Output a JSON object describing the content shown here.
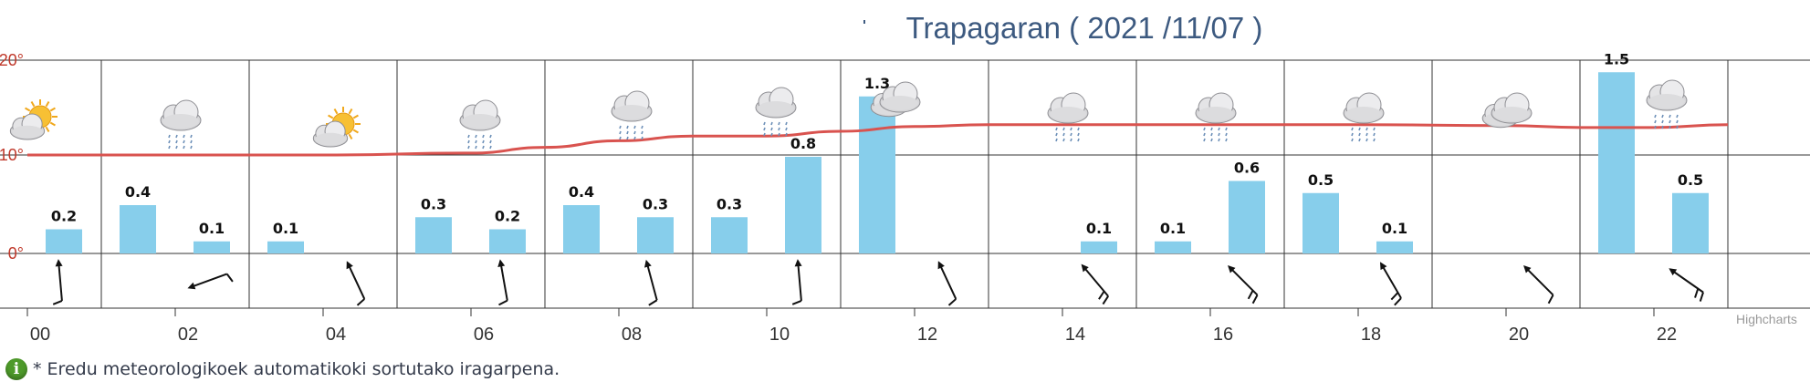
{
  "title": {
    "location": "Trapagaran",
    "date": "2021 /11/07",
    "full": "Trapagaran ( 2021 /11/07 )"
  },
  "credits": "Highcharts",
  "footnote": {
    "icon": "info-icon",
    "text": "* Eredu meteorologikoek automatikoki sortutako iragarpena."
  },
  "colors": {
    "precip_bar": "#87ceeb",
    "temperature_line": "#d9534f",
    "grid": "#333333",
    "title": "#3d5a80"
  },
  "chart_data": {
    "type": "bar",
    "xlabel": "",
    "ylabel": "",
    "x_ticks": [
      "00",
      "02",
      "04",
      "06",
      "08",
      "10",
      "12",
      "14",
      "16",
      "18",
      "20",
      "22"
    ],
    "y_ticks": [
      "0°",
      "10°",
      "20°"
    ],
    "ylim": [
      0,
      20
    ],
    "xlim": [
      0,
      23
    ],
    "grid": true,
    "series": [
      {
        "type": "bar",
        "hours": [
          0,
          1,
          2,
          3,
          5,
          6,
          7,
          8,
          9,
          10,
          11,
          14,
          15,
          16,
          17,
          18,
          21,
          22
        ],
        "values": [
          0.2,
          0.4,
          0.1,
          0.1,
          0.3,
          0.2,
          0.4,
          0.3,
          0.3,
          0.8,
          1.3,
          0.1,
          0.1,
          0.6,
          0.5,
          0.1,
          1.5,
          0.5
        ],
        "labels": [
          "0.2",
          "0.4",
          "0.1",
          "0.1",
          "0.3",
          "0.2",
          "0.4",
          "0.3",
          "0.3",
          "0.8",
          "1.3",
          "0.1",
          "0.1",
          "0.6",
          "0.5",
          "0.1",
          "1.5",
          "0.5"
        ]
      },
      {
        "type": "line",
        "unit": "°",
        "x": [
          0,
          2,
          4,
          6,
          7,
          8,
          9,
          10,
          11,
          12,
          13,
          14,
          16,
          18,
          20,
          21,
          22,
          23
        ],
        "values": [
          10,
          10,
          10,
          10.2,
          10.8,
          11.5,
          12,
          12,
          12.5,
          13,
          13.2,
          13.2,
          13.2,
          13.2,
          13.1,
          12.9,
          12.9,
          13.2
        ]
      }
    ],
    "weather_icons": [
      {
        "hour": 0,
        "icon": "partly-cloudy-icon"
      },
      {
        "hour": 2,
        "icon": "rain-cloud-icon"
      },
      {
        "hour": 4,
        "icon": "partly-cloudy-icon"
      },
      {
        "hour": 6,
        "icon": "rain-cloud-icon"
      },
      {
        "hour": 8,
        "icon": "rain-cloud-icon"
      },
      {
        "hour": 10,
        "icon": "rain-cloud-icon"
      },
      {
        "hour": 12,
        "icon": "cloud-icon"
      },
      {
        "hour": 14,
        "icon": "rain-cloud-icon"
      },
      {
        "hour": 16,
        "icon": "rain-cloud-icon"
      },
      {
        "hour": 18,
        "icon": "rain-cloud-icon"
      },
      {
        "hour": 20,
        "icon": "cloud-icon"
      },
      {
        "hour": 22,
        "icon": "rain-cloud-icon"
      }
    ],
    "wind_arrows": [
      {
        "hour": 0,
        "direction_deg": 355,
        "barbs": 1
      },
      {
        "hour": 2,
        "direction_deg": 250,
        "barbs": 1
      },
      {
        "hour": 4,
        "direction_deg": 335,
        "barbs": 1
      },
      {
        "hour": 6,
        "direction_deg": 350,
        "barbs": 1
      },
      {
        "hour": 8,
        "direction_deg": 345,
        "barbs": 1
      },
      {
        "hour": 10,
        "direction_deg": 355,
        "barbs": 1
      },
      {
        "hour": 12,
        "direction_deg": 335,
        "barbs": 1
      },
      {
        "hour": 14,
        "direction_deg": 320,
        "barbs": 2
      },
      {
        "hour": 16,
        "direction_deg": 315,
        "barbs": 2
      },
      {
        "hour": 18,
        "direction_deg": 330,
        "barbs": 2
      },
      {
        "hour": 20,
        "direction_deg": 315,
        "barbs": 1
      },
      {
        "hour": 22,
        "direction_deg": 305,
        "barbs": 2
      }
    ]
  }
}
